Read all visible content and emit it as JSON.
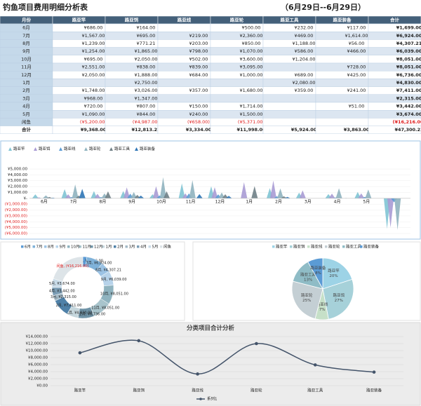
{
  "header": {
    "title": "钓鱼项目费用明细分析表",
    "date": "（6月29日--6月29日）"
  },
  "table": {
    "columns": [
      "月份",
      "路亚竿",
      "路亚饵",
      "路亚线",
      "路亚轮",
      "路亚工具",
      "路亚装备",
      "合计"
    ],
    "rows": [
      [
        "6月",
        "¥686.00",
        "¥164.00",
        null,
        "¥500.00",
        "¥232.00",
        "¥117.00",
        "¥1,699.00"
      ],
      [
        "7月",
        "¥1,567.00",
        "¥695.00",
        "¥219.00",
        "¥2,360.00",
        "¥469.00",
        "¥1,614.00",
        "¥6,924.00"
      ],
      [
        "8月",
        "¥1,239.00",
        "¥771.21",
        "¥203.00",
        "¥850.00",
        "¥1,188.00",
        "¥56.00",
        "¥4,307.21"
      ],
      [
        "9月",
        "¥1,254.00",
        "¥1,865.00",
        "¥798.00",
        "¥1,070.00",
        "¥586.00",
        "¥466.00",
        "¥6,039.00"
      ],
      [
        "10月",
        "¥695.00",
        "¥2,050.00",
        "¥502.00",
        "¥3,600.00",
        "¥1,204.00",
        null,
        "¥8,051.00"
      ],
      [
        "11月",
        "¥2,551.00",
        "¥838.00",
        "¥839.00",
        "¥3,095.00",
        null,
        "¥728.00",
        "¥8,051.00"
      ],
      [
        "12月",
        "¥2,050.00",
        "¥1,888.00",
        "¥684.00",
        "¥1,000.00",
        "¥689.00",
        "¥425.00",
        "¥6,736.00"
      ],
      [
        "1月",
        null,
        "¥2,750.00",
        null,
        null,
        "¥2,080.00",
        null,
        "¥4,830.00"
      ],
      [
        "2月",
        "¥1,748.00",
        "¥3,026.00",
        "¥357.00",
        "¥1,680.00",
        "¥359.00",
        "¥241.00",
        "¥7,411.00"
      ],
      [
        "3月",
        "¥968.00",
        "¥1,347.00",
        null,
        null,
        null,
        null,
        "¥2,315.00"
      ],
      [
        "4月",
        "¥720.00",
        "¥807.00",
        "¥150.00",
        "¥1,714.00",
        null,
        "¥51.00",
        "¥3,442.00"
      ],
      [
        "5月",
        "¥1,090.00",
        "¥844.00",
        "¥240.00",
        "¥1,500.00",
        null,
        null,
        "¥3,674.00"
      ],
      [
        "闲鱼",
        "(¥5,200.00)",
        "(¥4,987.00)",
        "(¥658.00)",
        "(¥5,371.00)",
        null,
        null,
        "(¥16,216.00)"
      ],
      [
        "合计",
        "¥9,368.00",
        "¥12,813.21",
        "¥3,334.00",
        "¥11,998.00",
        "¥5,924.00",
        "¥3,863.00",
        "¥47,300.21"
      ]
    ]
  },
  "chart_data": [
    {
      "type": "pyramid",
      "categories": [
        "6月",
        "7月",
        "8月",
        "9月",
        "10月",
        "11月",
        "12月",
        "1月",
        "2月",
        "3月",
        "4月",
        "5月",
        null
      ],
      "series": [
        {
          "name": "路亚竿",
          "color": "#7fc4d4",
          "values": [
            686,
            1567,
            1239,
            1254,
            695,
            2551,
            2050,
            null,
            1748,
            968,
            720,
            1090,
            -5200
          ]
        },
        {
          "name": "路亚饵",
          "color": "#a99bd4",
          "values": [
            164,
            695,
            771.21,
            1865,
            2050,
            838,
            1888,
            2750,
            3026,
            1347,
            807,
            844,
            -4987
          ]
        },
        {
          "name": "路亚线",
          "color": "#5a9bd5",
          "values": [
            null,
            219,
            203,
            798,
            502,
            839,
            684,
            null,
            357,
            null,
            150,
            240,
            -658
          ]
        },
        {
          "name": "路亚轮",
          "color": "#8fb3bf",
          "values": [
            500,
            2360,
            850,
            1070,
            3600,
            3095,
            1000,
            null,
            1680,
            null,
            1714,
            1500,
            -5371
          ]
        },
        {
          "name": "路亚工具",
          "color": "#6f7f86",
          "values": [
            232,
            469,
            1188,
            586,
            1204,
            null,
            689,
            2080,
            359,
            null,
            null,
            null,
            null
          ]
        },
        {
          "name": "路亚装备",
          "color": "#2e75b6",
          "values": [
            117,
            1614,
            56,
            466,
            null,
            728,
            425,
            null,
            241,
            null,
            51,
            null,
            null
          ]
        }
      ],
      "ylim": [
        -6000,
        5000
      ],
      "yticks": [
        {
          "value": 5000,
          "label": "¥5,000.00"
        },
        {
          "value": 4000,
          "label": "¥4,000.00"
        },
        {
          "value": 3000,
          "label": "¥3,000.00"
        },
        {
          "value": 2000,
          "label": "¥2,000.00"
        },
        {
          "value": 1000,
          "label": "¥1,000.00"
        },
        {
          "value": 0,
          "label": "¥-"
        },
        {
          "value": -1000,
          "label": "(¥1,000.00)"
        },
        {
          "value": -2000,
          "label": "(¥2,000.00)"
        },
        {
          "value": -3000,
          "label": "(¥3,000.00)"
        },
        {
          "value": -4000,
          "label": "(¥4,000.00)"
        },
        {
          "value": -5000,
          "label": "(¥5,000.00)"
        },
        {
          "value": -6000,
          "label": "(¥6,000.00)"
        }
      ],
      "grid": true,
      "legend": "top-left"
    },
    {
      "type": "donut",
      "categories": [
        "6月",
        "7月",
        "8月",
        "9月",
        "10月",
        "11月",
        "12月",
        "1月",
        "2月",
        "3月",
        "4月",
        "5月",
        "闲鱼"
      ],
      "values": [
        1699,
        6924,
        4307.21,
        6039,
        8051,
        8051,
        6736,
        4830,
        7411,
        2315,
        3442,
        3674,
        -16216
      ],
      "value_labels": [
        "6月, ¥1,699.00",
        "7月, ¥6,924.00",
        "8月, ¥4,307.21",
        "9月, ¥6,039.00",
        "10月, ¥8,051.00",
        "11月, ¥8,051.00",
        "12月, ¥6,736.00",
        "1月, ¥4,830.00",
        "2月, ¥7,411.00",
        "3月, ¥2,315.00",
        "4月, ¥3,442.00",
        "5月, ¥3,674.00",
        "闲鱼, (¥16,216.00)"
      ],
      "colors": [
        "#5b9bd5",
        "#7fb2d9",
        "#9cc3e4",
        "#b7d3ea",
        "#8fb3bf",
        "#a8c4cc",
        "#6f93a6",
        "#c5d6dc",
        "#4f81a8",
        "#a3b9c6",
        "#7b9db5",
        "#c9dbe8",
        "#dde4e8"
      ],
      "legend": "top"
    },
    {
      "type": "pie",
      "categories": [
        "路亚竿",
        "路亚饵",
        "路亚线",
        "路亚轮",
        "路亚工具",
        "路亚装备"
      ],
      "values": [
        20,
        27,
        7,
        25,
        13,
        8
      ],
      "value_labels": [
        "20%",
        "27%",
        "7%",
        "25%",
        "13%",
        "8%"
      ],
      "colors": [
        "#9dd3e6",
        "#a6d1d9",
        "#c6e0c8",
        "#c4cfd4",
        "#8fbcc6",
        "#5b9bd5"
      ],
      "legend": "top"
    },
    {
      "type": "line",
      "title": "分类项目合计分析",
      "categories": [
        "路亚竿",
        "路亚饵",
        "路亚线",
        "路亚轮",
        "路亚工具",
        "路亚装备"
      ],
      "series": [
        {
          "name": "系列1",
          "color": "#44546a",
          "values": [
            9368,
            12813.21,
            3334,
            11998,
            5924,
            3863
          ]
        }
      ],
      "ylim": [
        0,
        14000
      ],
      "yticks": [
        {
          "value": 0,
          "label": "¥0.00"
        },
        {
          "value": 2000,
          "label": "¥2,000.00"
        },
        {
          "value": 4000,
          "label": "¥4,000.00"
        },
        {
          "value": 6000,
          "label": "¥6,000.00"
        },
        {
          "value": 8000,
          "label": "¥8,000.00"
        },
        {
          "value": 10000,
          "label": "¥10,000.00"
        },
        {
          "value": 12000,
          "label": "¥12,000.00"
        },
        {
          "value": 14000,
          "label": "¥14,000.00"
        }
      ],
      "grid": true,
      "legend": "bottom"
    }
  ]
}
